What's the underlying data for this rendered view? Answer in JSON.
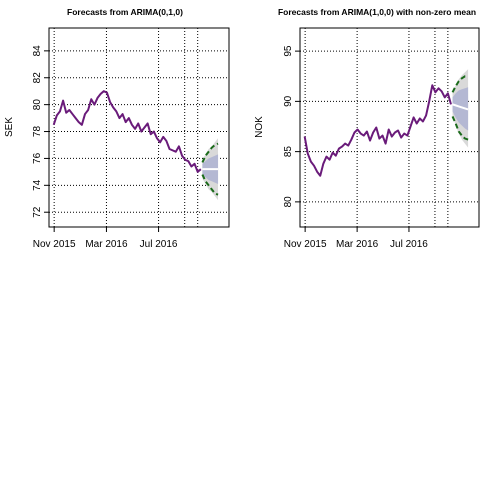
{
  "chart_data": [
    {
      "type": "line",
      "title": "Forecasts from ARIMA(0,1,0)",
      "xlabel": "",
      "ylabel": "SEK",
      "x_ticks": [
        "Nov 2015",
        "Mar 2016",
        "Jul 2016"
      ],
      "x_tick_positions": [
        2015.833,
        2016.167,
        2016.5
      ],
      "y_ticks": [
        72,
        74,
        76,
        78,
        80,
        82,
        84
      ],
      "xlim": [
        2015.8,
        2016.95
      ],
      "ylim": [
        70.9,
        85.7
      ],
      "grid": true,
      "colors": {
        "history": "#6a1b7a",
        "ci80": "#b4b8d3",
        "ci95": "#d9d9d9",
        "point": "#ffffff",
        "bounds": "#1a6b1a"
      },
      "history": {
        "x": [
          2015.83,
          2015.85,
          2015.87,
          2015.89,
          2015.91,
          2015.93,
          2015.95,
          2015.97,
          2015.99,
          2016.01,
          2016.03,
          2016.05,
          2016.07,
          2016.09,
          2016.11,
          2016.13,
          2016.15,
          2016.17,
          2016.19,
          2016.21,
          2016.23,
          2016.25,
          2016.27,
          2016.29,
          2016.31,
          2016.33,
          2016.35,
          2016.37,
          2016.39,
          2016.41,
          2016.43,
          2016.45,
          2016.47,
          2016.49,
          2016.51,
          2016.53,
          2016.55,
          2016.57,
          2016.59,
          2016.61,
          2016.63,
          2016.65,
          2016.67,
          2016.69,
          2016.71,
          2016.73,
          2016.75,
          2016.77
        ],
        "y": [
          78.5,
          79.2,
          79.5,
          80.3,
          79.4,
          79.6,
          79.3,
          79.0,
          78.7,
          78.5,
          79.3,
          79.6,
          80.4,
          80.0,
          80.5,
          80.8,
          81.0,
          80.9,
          80.2,
          79.8,
          79.5,
          79.0,
          79.3,
          78.7,
          79.0,
          78.5,
          78.2,
          78.6,
          78.0,
          78.3,
          78.6,
          77.8,
          78.0,
          77.5,
          77.2,
          77.6,
          77.3,
          76.7,
          76.6,
          76.5,
          76.9,
          76.2,
          75.9,
          75.8,
          75.4,
          75.6,
          75.0,
          75.2
        ]
      },
      "forecast": {
        "x": [
          2016.78,
          2016.8,
          2016.82,
          2016.84,
          2016.86,
          2016.88
        ],
        "point": [
          75.2,
          75.2,
          75.2,
          75.2,
          75.2,
          75.2
        ],
        "lo80": [
          74.8,
          74.6,
          74.4,
          74.3,
          74.2,
          74.1
        ],
        "hi80": [
          75.6,
          75.8,
          76.0,
          76.1,
          76.2,
          76.3
        ],
        "lo95": [
          74.5,
          74.1,
          73.7,
          73.5,
          73.2,
          72.9
        ],
        "hi95": [
          75.9,
          76.3,
          76.7,
          76.9,
          77.2,
          77.5
        ],
        "lower_bound": [
          74.8,
          74.3,
          74.0,
          73.7,
          73.4,
          73.3
        ],
        "upper_bound": [
          75.7,
          76.2,
          76.5,
          76.8,
          77.0,
          77.1
        ]
      }
    },
    {
      "type": "line",
      "title": "Forecasts from ARIMA(1,0,0) with non-zero mean",
      "xlabel": "",
      "ylabel": "NOK",
      "x_ticks": [
        "Nov 2015",
        "Mar 2016",
        "Jul 2016"
      ],
      "x_tick_positions": [
        2015.833,
        2016.167,
        2016.5
      ],
      "y_ticks": [
        80,
        85,
        90,
        95
      ],
      "xlim": [
        2015.8,
        2016.95
      ],
      "ylim": [
        77.5,
        97.3
      ],
      "grid": true,
      "colors": {
        "history": "#6a1b7a",
        "ci80": "#b4b8d3",
        "ci95": "#d9d9d9",
        "point": "#ffffff",
        "bounds": "#1a6b1a"
      },
      "history": {
        "x": [
          2015.83,
          2015.85,
          2015.87,
          2015.89,
          2015.91,
          2015.93,
          2015.95,
          2015.97,
          2015.99,
          2016.01,
          2016.03,
          2016.05,
          2016.07,
          2016.09,
          2016.11,
          2016.13,
          2016.15,
          2016.17,
          2016.19,
          2016.21,
          2016.23,
          2016.25,
          2016.27,
          2016.29,
          2016.31,
          2016.33,
          2016.35,
          2016.37,
          2016.39,
          2016.41,
          2016.43,
          2016.45,
          2016.47,
          2016.49,
          2016.51,
          2016.53,
          2016.55,
          2016.57,
          2016.59,
          2016.61,
          2016.63,
          2016.65,
          2016.67,
          2016.69,
          2016.71,
          2016.73,
          2016.75,
          2016.77
        ],
        "y": [
          86.5,
          84.8,
          84.0,
          83.6,
          83.0,
          82.6,
          83.8,
          84.5,
          84.2,
          84.9,
          84.6,
          85.3,
          85.5,
          85.8,
          85.6,
          86.2,
          86.9,
          87.2,
          86.8,
          86.6,
          87.0,
          86.1,
          86.9,
          87.4,
          86.3,
          86.6,
          85.8,
          87.2,
          86.5,
          86.9,
          87.1,
          86.4,
          86.8,
          86.6,
          87.5,
          88.4,
          87.8,
          88.3,
          88.0,
          88.6,
          90.0,
          91.6,
          90.9,
          91.3,
          91.0,
          90.4,
          90.8,
          89.7
        ]
      },
      "forecast": {
        "x": [
          2016.78,
          2016.8,
          2016.82,
          2016.84,
          2016.86,
          2016.88
        ],
        "point": [
          89.7,
          89.6,
          89.5,
          89.4,
          89.3,
          89.2
        ],
        "lo80": [
          89.0,
          88.4,
          87.9,
          87.6,
          87.3,
          87.1
        ],
        "hi80": [
          90.4,
          90.8,
          91.1,
          91.2,
          91.3,
          91.4
        ],
        "lo95": [
          88.6,
          87.6,
          86.8,
          86.2,
          85.8,
          85.4
        ],
        "hi95": [
          90.8,
          91.6,
          92.2,
          92.6,
          92.9,
          93.2
        ],
        "lower_bound": [
          88.5,
          87.8,
          87.0,
          86.6,
          86.3,
          86.2
        ],
        "upper_bound": [
          90.9,
          91.5,
          92.0,
          92.3,
          92.5,
          92.5
        ]
      }
    }
  ]
}
